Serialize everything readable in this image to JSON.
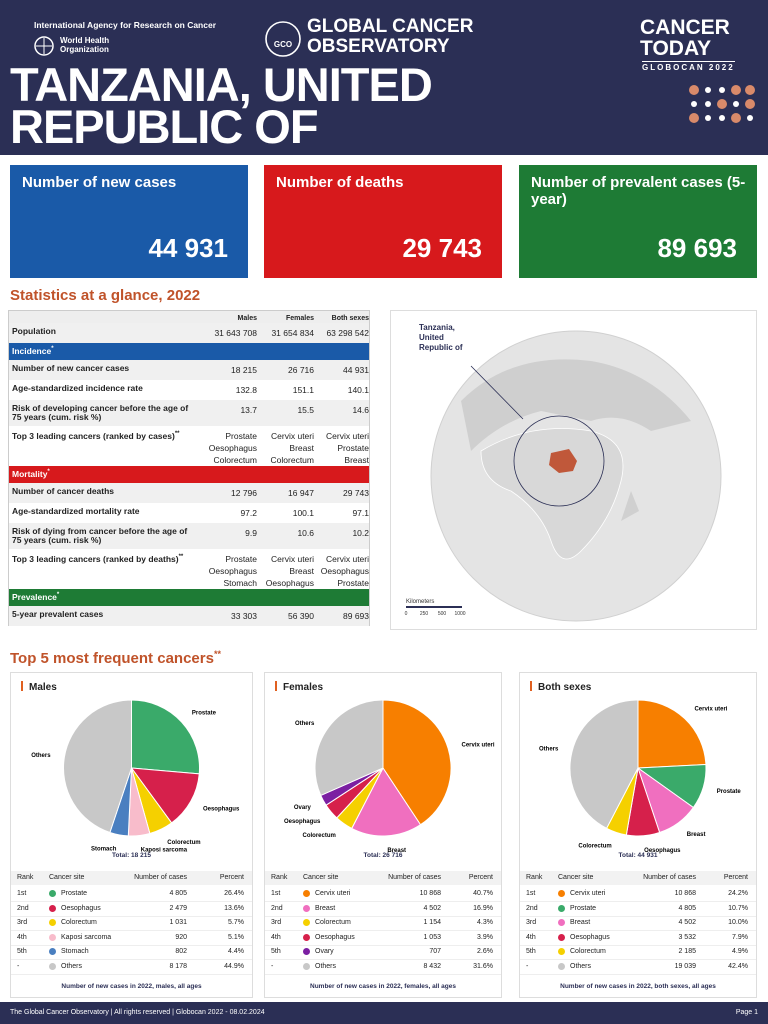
{
  "header": {
    "agency": "International Agency for Research on Cancer",
    "who": "World Health Organization",
    "observatory": "GLOBAL CANCER OBSERVATORY",
    "logo": "GCO",
    "product": "CANCER TODAY",
    "edition": "GLOBOCAN 2022",
    "country": "TANZANIA, UNITED REPUBLIC OF"
  },
  "key_figures": [
    {
      "label": "Number of new cases",
      "value": "44 931",
      "color": "#1a5aa8"
    },
    {
      "label": "Number of deaths",
      "value": "29 743",
      "color": "#d7191c"
    },
    {
      "label": "Number of prevalent cases (5-year)",
      "value": "89 693",
      "color": "#1e7b35"
    }
  ],
  "stats": {
    "title": "Statistics at a glance, 2022",
    "columns": [
      "Males",
      "Females",
      "Both sexes"
    ],
    "rows": [
      {
        "label": "Population",
        "cells": [
          "31 643 708",
          "31 654 834",
          "63 298 542"
        ]
      },
      {
        "section": "Incidence",
        "mark": "*",
        "color": "#1a5aa8"
      },
      {
        "label": "Number of new cancer cases",
        "cells": [
          "18 215",
          "26 716",
          "44 931"
        ]
      },
      {
        "label": "Age-standardized incidence rate",
        "cells": [
          "132.8",
          "151.1",
          "140.1"
        ]
      },
      {
        "label": "Risk of developing cancer before the age of 75 years (cum. risk %)",
        "cells": [
          "13.7",
          "15.5",
          "14.6"
        ]
      },
      {
        "label": "Top 3 leading cancers (ranked by cases)",
        "mark": "**",
        "cells": [
          [
            "Prostate",
            "Oesophagus",
            "Colorectum"
          ],
          [
            "Cervix uteri",
            "Breast",
            "Colorectum"
          ],
          [
            "Cervix uteri",
            "Prostate",
            "Breast"
          ]
        ]
      },
      {
        "section": "Mortality",
        "mark": "*",
        "color": "#d7191c"
      },
      {
        "label": "Number of cancer deaths",
        "cells": [
          "12 796",
          "16 947",
          "29 743"
        ]
      },
      {
        "label": "Age-standardized mortality rate",
        "cells": [
          "97.2",
          "100.1",
          "97.1"
        ]
      },
      {
        "label": "Risk of dying from cancer before the age of 75 years (cum. risk %)",
        "cells": [
          "9.9",
          "10.6",
          "10.2"
        ]
      },
      {
        "label": "Top 3 leading cancers (ranked by deaths)",
        "mark": "**",
        "cells": [
          [
            "Prostate",
            "Oesophagus",
            "Stomach"
          ],
          [
            "Cervix uteri",
            "Breast",
            "Oesophagus"
          ],
          [
            "Cervix uteri",
            "Oesophagus",
            "Prostate"
          ]
        ]
      },
      {
        "section": "Prevalence",
        "mark": "*",
        "color": "#1e7b35"
      },
      {
        "label": "5-year prevalent cases",
        "cells": [
          "33 303",
          "56 390",
          "89 693"
        ]
      }
    ]
  },
  "map": {
    "label": "Tanzania, United Republic of",
    "scale_title": "Kilometers",
    "scale": [
      "0",
      "250",
      "500",
      "1000"
    ]
  },
  "top5": {
    "title": "Top 5 most frequent cancers",
    "mark": "**",
    "panels": [
      {
        "title": "Males",
        "total": "Total: 18 215",
        "columns": [
          "Rank",
          "Cancer site",
          "Number of cases",
          "Percent"
        ],
        "footnote": "Number of new cases in 2022, males, all ages",
        "rows": [
          {
            "rank": "1st",
            "site": "Prostate",
            "cases": "4 805",
            "percent": 26.4,
            "percent_label": "26.4%",
            "color": "#3aaa6a"
          },
          {
            "rank": "2nd",
            "site": "Oesophagus",
            "cases": "2 479",
            "percent": 13.6,
            "percent_label": "13.6%",
            "color": "#d6204b"
          },
          {
            "rank": "3rd",
            "site": "Colorectum",
            "cases": "1 031",
            "percent": 5.7,
            "percent_label": "5.7%",
            "color": "#f5d000"
          },
          {
            "rank": "4th",
            "site": "Kaposi sarcoma",
            "cases": "920",
            "percent": 5.1,
            "percent_label": "5.1%",
            "color": "#f8bccb"
          },
          {
            "rank": "5th",
            "site": "Stomach",
            "cases": "802",
            "percent": 4.4,
            "percent_label": "4.4%",
            "color": "#4a7fc0"
          },
          {
            "rank": "-",
            "site": "Others",
            "cases": "8 178",
            "percent": 44.9,
            "percent_label": "44.9%",
            "color": "#c8c8c8"
          }
        ]
      },
      {
        "title": "Females",
        "total": "Total: 26 716",
        "columns": [
          "Rank",
          "Cancer site",
          "Number of cases",
          "Percent"
        ],
        "footnote": "Number of new cases in 2022, females, all ages",
        "rows": [
          {
            "rank": "1st",
            "site": "Cervix uteri",
            "cases": "10 868",
            "percent": 40.7,
            "percent_label": "40.7%",
            "color": "#f77f00"
          },
          {
            "rank": "2nd",
            "site": "Breast",
            "cases": "4 502",
            "percent": 16.9,
            "percent_label": "16.9%",
            "color": "#f06fbf"
          },
          {
            "rank": "3rd",
            "site": "Colorectum",
            "cases": "1 154",
            "percent": 4.3,
            "percent_label": "4.3%",
            "color": "#f5d000"
          },
          {
            "rank": "4th",
            "site": "Oesophagus",
            "cases": "1 053",
            "percent": 3.9,
            "percent_label": "3.9%",
            "color": "#d6204b"
          },
          {
            "rank": "5th",
            "site": "Ovary",
            "cases": "707",
            "percent": 2.6,
            "percent_label": "2.6%",
            "color": "#7b1fa2"
          },
          {
            "rank": "-",
            "site": "Others",
            "cases": "8 432",
            "percent": 31.6,
            "percent_label": "31.6%",
            "color": "#c8c8c8"
          }
        ]
      },
      {
        "title": "Both sexes",
        "total": "Total: 44 931",
        "columns": [
          "Rank",
          "Cancer site",
          "Number of cases",
          "Percent"
        ],
        "footnote": "Number of new cases in 2022, both sexes, all ages",
        "rows": [
          {
            "rank": "1st",
            "site": "Cervix uteri",
            "cases": "10 868",
            "percent": 24.2,
            "percent_label": "24.2%",
            "color": "#f77f00"
          },
          {
            "rank": "2nd",
            "site": "Prostate",
            "cases": "4 805",
            "percent": 10.7,
            "percent_label": "10.7%",
            "color": "#3aaa6a"
          },
          {
            "rank": "3rd",
            "site": "Breast",
            "cases": "4 502",
            "percent": 10.0,
            "percent_label": "10.0%",
            "color": "#f06fbf"
          },
          {
            "rank": "4th",
            "site": "Oesophagus",
            "cases": "3 532",
            "percent": 7.9,
            "percent_label": "7.9%",
            "color": "#d6204b"
          },
          {
            "rank": "5th",
            "site": "Colorectum",
            "cases": "2 185",
            "percent": 4.9,
            "percent_label": "4.9%",
            "color": "#f5d000"
          },
          {
            "rank": "-",
            "site": "Others",
            "cases": "19 039",
            "percent": 42.4,
            "percent_label": "42.4%",
            "color": "#c8c8c8"
          }
        ]
      }
    ]
  },
  "footer": {
    "text": "The Global Cancer Observatory | All rights reserved | Globocan 2022 - 08.02.2024",
    "page": "Page 1"
  }
}
